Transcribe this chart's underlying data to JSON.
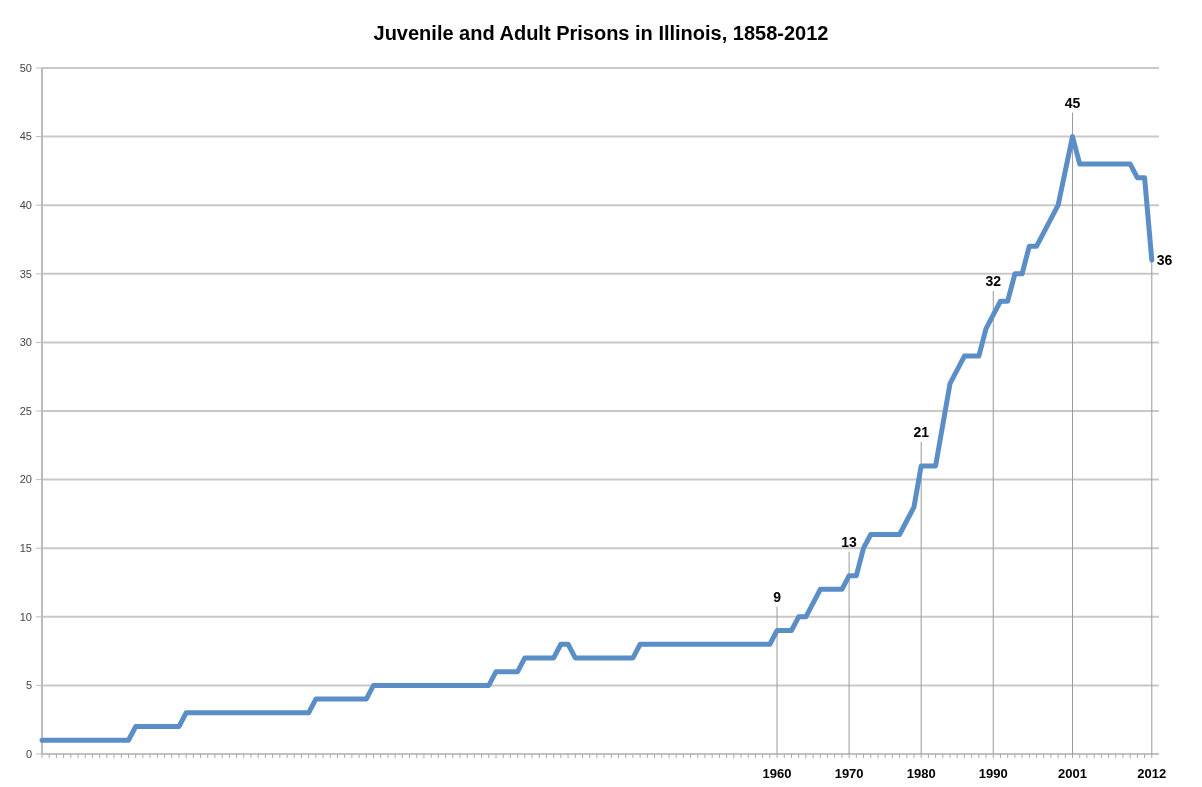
{
  "chart_data": {
    "type": "line",
    "title": "Juvenile and Adult Prisons in Illinois, 1858-2012",
    "x": [
      1858,
      1870,
      1871,
      1877,
      1878,
      1895,
      1896,
      1903,
      1904,
      1920,
      1921,
      1924,
      1925,
      1929,
      1930,
      1931,
      1932,
      1940,
      1941,
      1959,
      1960,
      1962,
      1963,
      1964,
      1965,
      1966,
      1969,
      1970,
      1971,
      1972,
      1973,
      1977,
      1979,
      1980,
      1982,
      1984,
      1986,
      1988,
      1989,
      1990,
      1991,
      1992,
      1993,
      1994,
      1995,
      1996,
      1997,
      1999,
      2001,
      2002,
      2009,
      2010,
      2011,
      2012
    ],
    "series": [
      {
        "color": "#5b8ec6",
        "values": [
          1,
          1,
          2,
          2,
          3,
          3,
          4,
          4,
          5,
          5,
          6,
          6,
          7,
          7,
          8,
          8,
          7,
          7,
          8,
          8,
          9,
          9,
          10,
          10,
          11,
          12,
          12,
          13,
          13,
          15,
          16,
          16,
          18,
          21,
          21,
          27,
          29,
          29,
          31,
          32,
          33,
          33,
          35,
          35,
          37,
          37,
          38,
          40,
          45,
          43,
          43,
          42,
          42,
          36
        ]
      }
    ],
    "xlim": [
      1858,
      2013
    ],
    "xticks": [
      {
        "value": 1858,
        "label": null
      },
      {
        "value": 1859,
        "label": null
      },
      {
        "value": 1860,
        "label": null
      },
      {
        "value": 1861,
        "label": null
      },
      {
        "value": 1862,
        "label": null
      },
      {
        "value": 1863,
        "label": null
      },
      {
        "value": 1864,
        "label": null
      },
      {
        "value": 1865,
        "label": null
      },
      {
        "value": 1866,
        "label": null
      },
      {
        "value": 1867,
        "label": null
      },
      {
        "value": 1868,
        "label": null
      },
      {
        "value": 1869,
        "label": null
      },
      {
        "value": 1870,
        "label": null
      },
      {
        "value": 1871,
        "label": null
      },
      {
        "value": 1872,
        "label": null
      },
      {
        "value": 1873,
        "label": null
      },
      {
        "value": 1874,
        "label": null
      },
      {
        "value": 1875,
        "label": null
      },
      {
        "value": 1876,
        "label": null
      },
      {
        "value": 1877,
        "label": null
      },
      {
        "value": 1878,
        "label": null
      },
      {
        "value": 1879,
        "label": null
      },
      {
        "value": 1880,
        "label": null
      },
      {
        "value": 1881,
        "label": null
      },
      {
        "value": 1882,
        "label": null
      },
      {
        "value": 1883,
        "label": null
      },
      {
        "value": 1884,
        "label": null
      },
      {
        "value": 1885,
        "label": null
      },
      {
        "value": 1886,
        "label": null
      },
      {
        "value": 1887,
        "label": null
      },
      {
        "value": 1888,
        "label": null
      },
      {
        "value": 1889,
        "label": null
      },
      {
        "value": 1890,
        "label": null
      },
      {
        "value": 1891,
        "label": null
      },
      {
        "value": 1892,
        "label": null
      },
      {
        "value": 1893,
        "label": null
      },
      {
        "value": 1894,
        "label": null
      },
      {
        "value": 1895,
        "label": null
      },
      {
        "value": 1896,
        "label": null
      },
      {
        "value": 1897,
        "label": null
      },
      {
        "value": 1898,
        "label": null
      },
      {
        "value": 1899,
        "label": null
      },
      {
        "value": 1900,
        "label": null
      },
      {
        "value": 1901,
        "label": null
      },
      {
        "value": 1902,
        "label": null
      },
      {
        "value": 1903,
        "label": null
      },
      {
        "value": 1904,
        "label": null
      },
      {
        "value": 1905,
        "label": null
      },
      {
        "value": 1906,
        "label": null
      },
      {
        "value": 1907,
        "label": null
      },
      {
        "value": 1908,
        "label": null
      },
      {
        "value": 1909,
        "label": null
      },
      {
        "value": 1910,
        "label": null
      },
      {
        "value": 1911,
        "label": null
      },
      {
        "value": 1912,
        "label": null
      },
      {
        "value": 1913,
        "label": null
      },
      {
        "value": 1914,
        "label": null
      },
      {
        "value": 1915,
        "label": null
      },
      {
        "value": 1916,
        "label": null
      },
      {
        "value": 1917,
        "label": null
      },
      {
        "value": 1918,
        "label": null
      },
      {
        "value": 1919,
        "label": null
      },
      {
        "value": 1920,
        "label": null
      },
      {
        "value": 1921,
        "label": null
      },
      {
        "value": 1922,
        "label": null
      },
      {
        "value": 1923,
        "label": null
      },
      {
        "value": 1924,
        "label": null
      },
      {
        "value": 1925,
        "label": null
      },
      {
        "value": 1926,
        "label": null
      },
      {
        "value": 1927,
        "label": null
      },
      {
        "value": 1928,
        "label": null
      },
      {
        "value": 1929,
        "label": null
      },
      {
        "value": 1930,
        "label": null
      },
      {
        "value": 1931,
        "label": null
      },
      {
        "value": 1932,
        "label": null
      },
      {
        "value": 1933,
        "label": null
      },
      {
        "value": 1934,
        "label": null
      },
      {
        "value": 1935,
        "label": null
      },
      {
        "value": 1936,
        "label": null
      },
      {
        "value": 1937,
        "label": null
      },
      {
        "value": 1938,
        "label": null
      },
      {
        "value": 1939,
        "label": null
      },
      {
        "value": 1940,
        "label": null
      },
      {
        "value": 1941,
        "label": null
      },
      {
        "value": 1942,
        "label": null
      },
      {
        "value": 1943,
        "label": null
      },
      {
        "value": 1944,
        "label": null
      },
      {
        "value": 1945,
        "label": null
      },
      {
        "value": 1946,
        "label": null
      },
      {
        "value": 1947,
        "label": null
      },
      {
        "value": 1948,
        "label": null
      },
      {
        "value": 1949,
        "label": null
      },
      {
        "value": 1950,
        "label": null
      },
      {
        "value": 1951,
        "label": null
      },
      {
        "value": 1952,
        "label": null
      },
      {
        "value": 1953,
        "label": null
      },
      {
        "value": 1954,
        "label": null
      },
      {
        "value": 1955,
        "label": null
      },
      {
        "value": 1956,
        "label": null
      },
      {
        "value": 1957,
        "label": null
      },
      {
        "value": 1958,
        "label": null
      },
      {
        "value": 1959,
        "label": null
      },
      1960,
      {
        "value": 1961,
        "label": null
      },
      {
        "value": 1962,
        "label": null
      },
      {
        "value": 1963,
        "label": null
      },
      {
        "value": 1964,
        "label": null
      },
      {
        "value": 1965,
        "label": null
      },
      {
        "value": 1966,
        "label": null
      },
      {
        "value": 1967,
        "label": null
      },
      {
        "value": 1968,
        "label": null
      },
      {
        "value": 1969,
        "label": null
      },
      1970,
      {
        "value": 1971,
        "label": null
      },
      {
        "value": 1972,
        "label": null
      },
      {
        "value": 1973,
        "label": null
      },
      {
        "value": 1974,
        "label": null
      },
      {
        "value": 1975,
        "label": null
      },
      {
        "value": 1976,
        "label": null
      },
      {
        "value": 1977,
        "label": null
      },
      {
        "value": 1978,
        "label": null
      },
      {
        "value": 1979,
        "label": null
      },
      1980,
      {
        "value": 1981,
        "label": null
      },
      {
        "value": 1982,
        "label": null
      },
      {
        "value": 1983,
        "label": null
      },
      {
        "value": 1984,
        "label": null
      },
      {
        "value": 1985,
        "label": null
      },
      {
        "value": 1986,
        "label": null
      },
      {
        "value": 1987,
        "label": null
      },
      {
        "value": 1988,
        "label": null
      },
      {
        "value": 1989,
        "label": null
      },
      1990,
      {
        "value": 1991,
        "label": null
      },
      {
        "value": 1992,
        "label": null
      },
      {
        "value": 1993,
        "label": null
      },
      {
        "value": 1994,
        "label": null
      },
      {
        "value": 1995,
        "label": null
      },
      {
        "value": 1996,
        "label": null
      },
      {
        "value": 1997,
        "label": null
      },
      {
        "value": 1998,
        "label": null
      },
      {
        "value": 1999,
        "label": null
      },
      {
        "value": 2000,
        "label": null
      },
      2001,
      {
        "value": 2002,
        "label": null
      },
      {
        "value": 2003,
        "label": null
      },
      {
        "value": 2004,
        "label": null
      },
      {
        "value": 2005,
        "label": null
      },
      {
        "value": 2006,
        "label": null
      },
      {
        "value": 2007,
        "label": null
      },
      {
        "value": 2008,
        "label": null
      },
      {
        "value": 2009,
        "label": null
      },
      {
        "value": 2010,
        "label": null
      },
      {
        "value": 2011,
        "label": null
      },
      2012
    ],
    "ylim": [
      0,
      50
    ],
    "yticks": [
      0,
      5,
      10,
      15,
      20,
      25,
      30,
      35,
      40,
      45,
      50
    ],
    "grid": "y",
    "marker": "none",
    "line_style": "solid",
    "ref_lines": [
      {
        "axis": "x",
        "value": 1960
      },
      {
        "axis": "x",
        "value": 1970
      },
      {
        "axis": "x",
        "value": 1980
      },
      {
        "axis": "x",
        "value": 1990
      },
      {
        "axis": "x",
        "value": 2001
      },
      {
        "axis": "x",
        "value": 2012
      }
    ],
    "annotations": [
      {
        "text": "9",
        "x": 1960,
        "y": 9
      },
      {
        "text": "13",
        "x": 1970,
        "y": 13
      },
      {
        "text": "21",
        "x": 1980,
        "y": 21
      },
      {
        "text": "32",
        "x": 1990,
        "y": 32
      },
      {
        "text": "45",
        "x": 2001,
        "y": 45
      },
      {
        "text": "36",
        "x": 2012,
        "y": 36
      }
    ]
  }
}
